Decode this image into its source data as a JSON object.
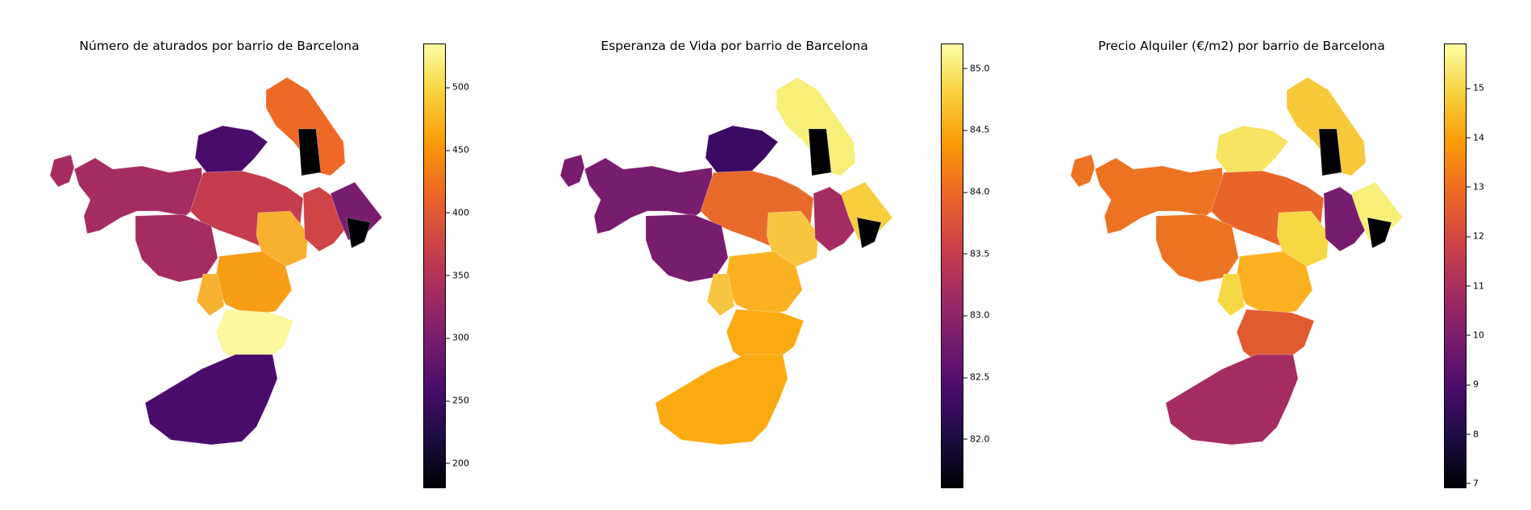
{
  "colormap": "inferno",
  "colormap_stops": [
    "#000004",
    "#1b0c41",
    "#4a0c6b",
    "#781c6d",
    "#a52c60",
    "#cf4446",
    "#ed6925",
    "#fb9b06",
    "#f7d13d",
    "#fcffa4"
  ],
  "charts": [
    {
      "title": "Número de aturados por barrio de Barcelona",
      "range": [
        180,
        535
      ],
      "ticks": [
        "200",
        "250",
        "300",
        "350",
        "400",
        "450",
        "500"
      ],
      "tick_values": [
        200,
        250,
        300,
        350,
        400,
        450,
        500
      ],
      "colors": {
        "west": "#a52c60",
        "north": "#4a0c6b",
        "center": "#c43c4e",
        "central_south": "#f89d16",
        "south": "#fbf8a0",
        "port": "#4a0c6b",
        "east": "#cf4446",
        "coast": "#781c6d",
        "northeast": "#ed6925",
        "hot": "#f8b030",
        "dark": "#000004"
      }
    },
    {
      "title": "Esperanza de Vida por barrio de Barcelona",
      "range": [
        81.6,
        85.2
      ],
      "ticks": [
        "82.0",
        "82.5",
        "83.0",
        "83.5",
        "84.0",
        "84.5",
        "85.0"
      ],
      "tick_values": [
        82.0,
        82.5,
        83.0,
        83.5,
        84.0,
        84.5,
        85.0
      ],
      "colors": {
        "west": "#781c6d",
        "north": "#3a0963",
        "center": "#e86a2a",
        "central_south": "#fbb122",
        "south": "#fbaa12",
        "port": "#fbaa12",
        "east": "#a52c60",
        "coast": "#f6ce3e",
        "northeast": "#f6f07a",
        "hot": "#f8c540",
        "dark": "#000004"
      }
    },
    {
      "title": "Precio Alquiler (€/m2) por barrio de Barcelona",
      "range": [
        6.9,
        15.9
      ],
      "ticks": [
        "7",
        "8",
        "9",
        "10",
        "11",
        "12",
        "13",
        "14",
        "15"
      ],
      "tick_values": [
        7,
        8,
        9,
        10,
        11,
        12,
        13,
        14,
        15
      ],
      "colors": {
        "west": "#ed7222",
        "north": "#f6e462",
        "center": "#e8642a",
        "central_south": "#fbb122",
        "south": "#e05a30",
        "port": "#a52c60",
        "east": "#781c6d",
        "coast": "#f6f07a",
        "northeast": "#f6c83a",
        "hot": "#f6d845",
        "dark": "#000004"
      }
    }
  ]
}
